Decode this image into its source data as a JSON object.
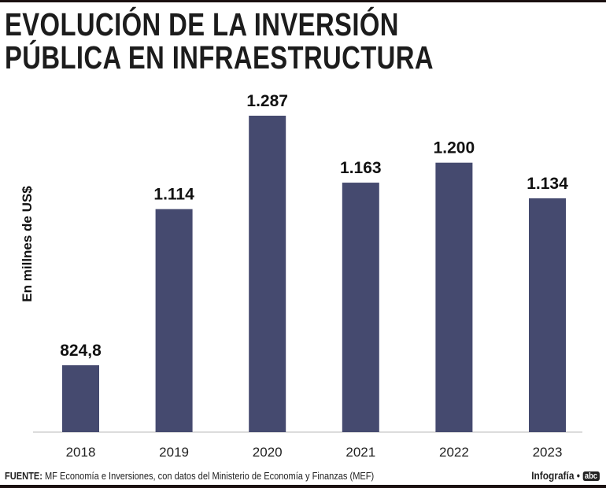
{
  "title_lines": [
    "EVOLUCIÓN DE LA INVERSIÓN",
    "PÚBLICA EN INFRAESTRUCTURA"
  ],
  "footer": {
    "label": "FUENTE:",
    "text": "MF Economía e Inversiones, con datos del Ministerio de Economía y Finanzas (MEF)"
  },
  "credit": {
    "text": "Infografía •",
    "logo": "abc"
  },
  "chart_data": {
    "type": "bar",
    "title": "EVOLUCIÓN DE LA INVERSIÓN PÚBLICA EN INFRAESTRUCTURA",
    "ylabel": "En  millnes de US$",
    "xlabel": "",
    "categories": [
      "2018",
      "2019",
      "2020",
      "2021",
      "2022",
      "2023"
    ],
    "values": [
      824.8,
      1114,
      1287,
      1163,
      1200,
      1134
    ],
    "data_labels": [
      "824,8",
      "1.114",
      "1.287",
      "1.163",
      "1.200",
      "1.134"
    ],
    "ylim": [
      701,
      1287
    ],
    "grid": false,
    "bar_color": "#454a6f"
  }
}
